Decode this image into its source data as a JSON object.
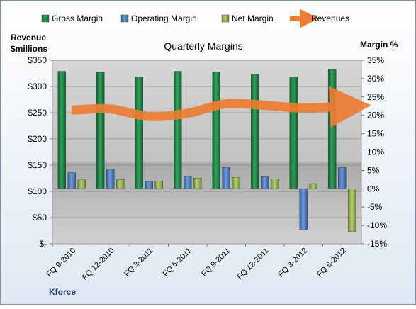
{
  "chart_data": {
    "type": "bar",
    "title": "Quarterly Margins",
    "company": "Kforce",
    "y_left_label_line1": "Revenue",
    "y_left_label_line2": "$millions",
    "y_right_label": "Margin %",
    "categories": [
      "FQ 9-2010",
      "FQ 12-2010",
      "FQ 3-2011",
      "FQ 6-2011",
      "FQ 9-2011",
      "FQ 12-2011",
      "FQ 3-2012",
      "FQ 6-2012"
    ],
    "left_axis": {
      "min": 0,
      "max": 350,
      "step": 50,
      "ticks": [
        "$-",
        "$50",
        "$100",
        "$150",
        "$200",
        "$250",
        "$300",
        "$350"
      ]
    },
    "right_axis": {
      "min": -15,
      "max": 35,
      "step": 5,
      "ticks": [
        "-15%",
        "-10%",
        "-5%",
        "0%",
        "5%",
        "10%",
        "15%",
        "20%",
        "25%",
        "30%",
        "35%"
      ]
    },
    "series": [
      {
        "name": "Gross Margin",
        "axis": "right",
        "color": "#1e8a45",
        "values": [
          32.0,
          31.8,
          30.4,
          32.0,
          31.8,
          31.2,
          30.4,
          32.5
        ]
      },
      {
        "name": "Operating Margin",
        "axis": "right",
        "color": "#4f7fc4",
        "values": [
          4.4,
          5.3,
          1.9,
          3.5,
          5.8,
          3.3,
          -11.2,
          5.8
        ]
      },
      {
        "name": "Net Margin",
        "axis": "right",
        "color": "#9dbb55",
        "values": [
          2.4,
          2.5,
          2.1,
          2.9,
          3.1,
          2.6,
          1.4,
          -11.7
        ]
      },
      {
        "name": "Revenues",
        "axis": "left",
        "type": "line",
        "color": "#ed7d31",
        "values": [
          255,
          257,
          243,
          249,
          267,
          264,
          259,
          262
        ]
      }
    ],
    "legend_position": "top"
  }
}
